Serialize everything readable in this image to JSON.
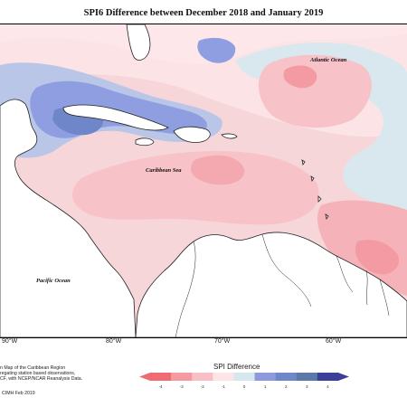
{
  "title": "SPI6 Difference between December 2018 and January 2019",
  "labels": {
    "atlantic": "Atlantic Ocean",
    "caribbean": "Caribbean Sea",
    "pacific": "Pacific Ocean"
  },
  "longitude_ticks": [
    "90°W",
    "80°W",
    "70°W",
    "60°W"
  ],
  "credit_lines": [
    "n Map of the Caribbean Region",
    "regating station based observations,",
    "CF, with NCEP/NCAR Reanalysis Data.",
    "CIMH Feb 2019"
  ],
  "legend": {
    "title": "SPI Difference",
    "ticks": [
      "-4",
      "-3",
      "-2",
      "-1",
      "0",
      "1",
      "2",
      "3",
      "4"
    ],
    "colors": [
      "#f06a74",
      "#f49aa0",
      "#f8c0c4",
      "#fde5e7",
      "#d6e8ee",
      "#8d9bdc",
      "#6f86c8",
      "#5a78a8",
      "#3b3f9a"
    ]
  }
}
